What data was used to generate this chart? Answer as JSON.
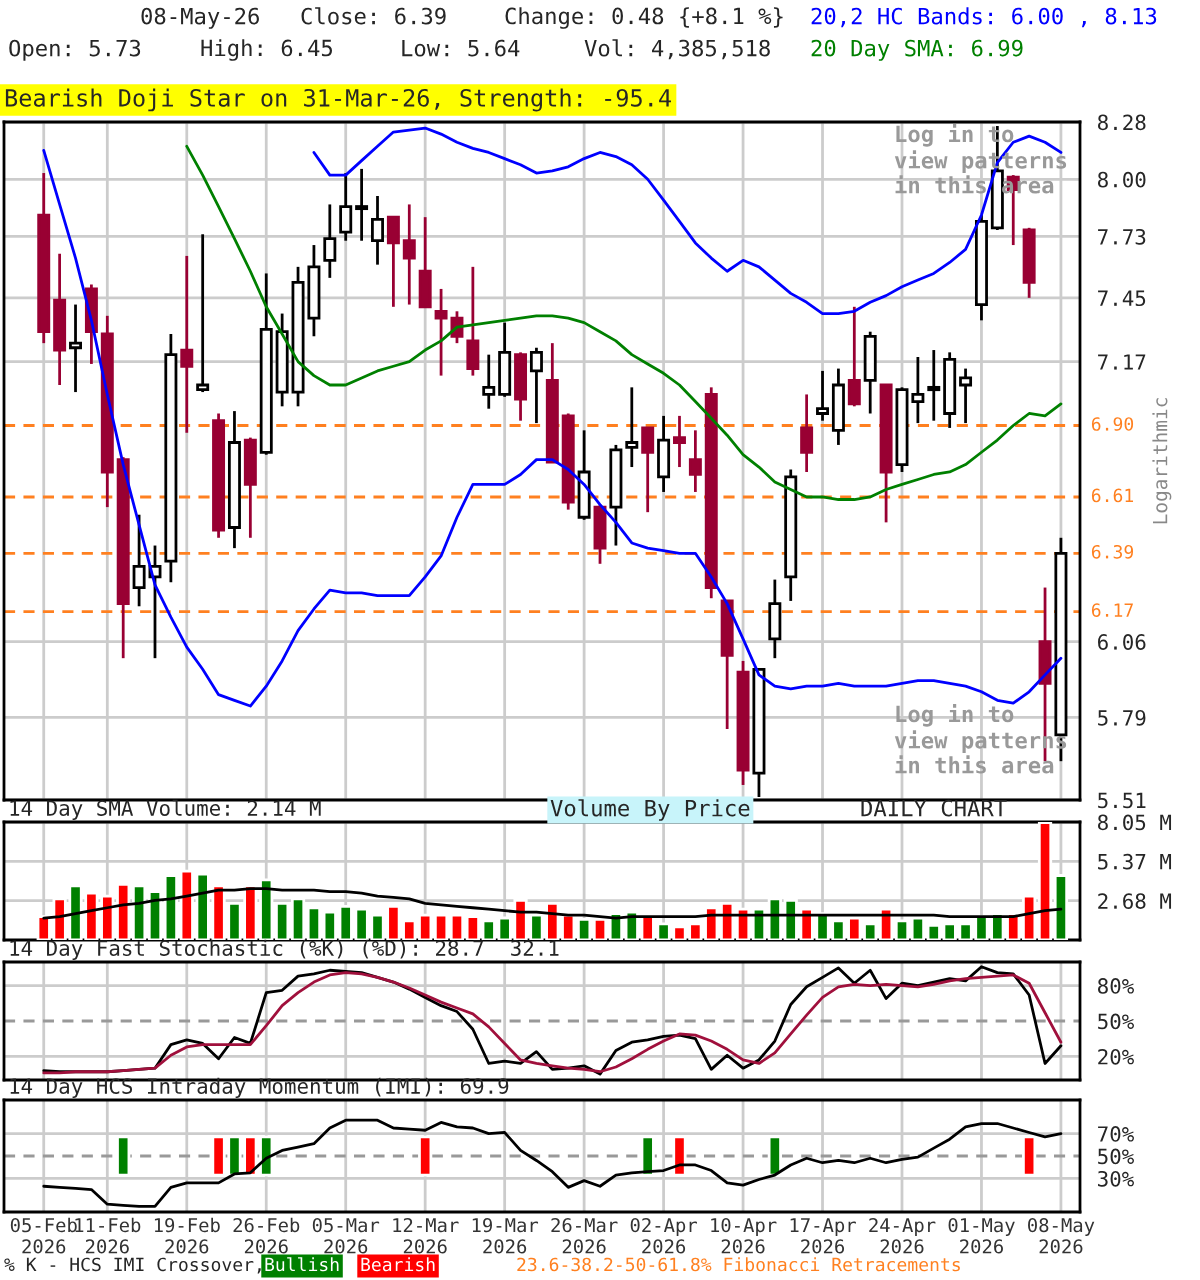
{
  "chart_data": [
    {
      "type": "candlestick",
      "title": "Bearish Doji Star on 31-Mar-26, Strength: -95.4",
      "ylabel": "Logarithmic",
      "categories": [
        null,
        null,
        null,
        null,
        null,
        null,
        null,
        null,
        null,
        null,
        null,
        null,
        null,
        null,
        null,
        null,
        null,
        null,
        null,
        null,
        null,
        null,
        null,
        null,
        null,
        null,
        null,
        null,
        null,
        null,
        null,
        null,
        null,
        null,
        null,
        null,
        null,
        null,
        null,
        null,
        null,
        null,
        null,
        null,
        null,
        null,
        null,
        null,
        null,
        null,
        null,
        null,
        null,
        null,
        null,
        null,
        null,
        null,
        null,
        null,
        null,
        null,
        null,
        null,
        null
      ],
      "ohlc": [
        [
          7.83,
          8.03,
          7.25,
          7.3
        ],
        [
          7.44,
          7.65,
          7.07,
          7.22
        ],
        [
          7.23,
          7.42,
          7.04,
          7.25
        ],
        [
          7.49,
          7.51,
          7.16,
          7.3
        ],
        [
          7.29,
          7.37,
          6.57,
          6.71
        ],
        [
          6.76,
          6.77,
          6.0,
          6.2
        ],
        [
          6.26,
          6.54,
          6.19,
          6.34
        ],
        [
          6.3,
          6.42,
          6.0,
          6.34
        ],
        [
          6.36,
          7.29,
          6.28,
          7.2
        ],
        [
          7.22,
          7.64,
          6.87,
          7.15
        ],
        [
          7.05,
          7.74,
          7.04,
          7.07
        ],
        [
          6.92,
          6.95,
          6.45,
          6.48
        ],
        [
          6.49,
          6.96,
          6.41,
          6.83
        ],
        [
          6.84,
          6.85,
          6.45,
          6.66
        ],
        [
          6.79,
          7.56,
          6.78,
          7.31
        ],
        [
          7.04,
          7.38,
          6.98,
          7.3
        ],
        [
          7.04,
          7.59,
          6.98,
          7.52
        ],
        [
          7.36,
          7.69,
          7.28,
          7.59
        ],
        [
          7.62,
          7.88,
          7.54,
          7.72
        ],
        [
          7.75,
          8.03,
          7.71,
          7.87
        ],
        [
          7.86,
          8.05,
          7.71,
          7.87
        ],
        [
          7.71,
          7.92,
          7.6,
          7.81
        ],
        [
          7.82,
          7.82,
          7.41,
          7.7
        ],
        [
          7.71,
          7.88,
          7.42,
          7.63
        ],
        [
          7.57,
          7.82,
          7.41,
          7.41
        ],
        [
          7.39,
          7.49,
          7.11,
          7.36
        ],
        [
          7.36,
          7.39,
          7.25,
          7.28
        ],
        [
          7.26,
          7.59,
          7.11,
          7.14
        ],
        [
          7.03,
          7.2,
          6.97,
          7.06
        ],
        [
          7.03,
          7.34,
          7.02,
          7.21
        ],
        [
          7.2,
          7.21,
          6.92,
          7.01
        ],
        [
          7.13,
          7.23,
          6.91,
          7.21
        ],
        [
          7.09,
          7.25,
          6.75,
          6.75
        ],
        [
          6.94,
          6.95,
          6.56,
          6.59
        ],
        [
          6.53,
          6.88,
          6.52,
          6.71
        ],
        [
          6.57,
          6.58,
          6.35,
          6.41
        ],
        [
          6.57,
          6.82,
          6.42,
          6.8
        ],
        [
          6.81,
          7.06,
          6.73,
          6.83
        ],
        [
          6.89,
          6.89,
          6.55,
          6.79
        ],
        [
          6.69,
          6.94,
          6.63,
          6.84
        ],
        [
          6.85,
          6.94,
          6.73,
          6.83
        ],
        [
          6.76,
          6.88,
          6.63,
          6.7
        ],
        [
          7.03,
          7.06,
          6.22,
          6.26
        ],
        [
          6.21,
          6.21,
          5.75,
          6.01
        ],
        [
          5.95,
          5.99,
          5.56,
          5.61
        ],
        [
          5.6,
          5.96,
          5.52,
          5.96
        ],
        [
          6.07,
          6.29,
          6.0,
          6.2
        ],
        [
          6.3,
          6.72,
          6.21,
          6.69
        ],
        [
          6.89,
          7.03,
          6.71,
          6.79
        ],
        [
          6.95,
          7.13,
          6.92,
          6.97
        ],
        [
          6.88,
          7.14,
          6.82,
          7.07
        ],
        [
          7.09,
          7.41,
          6.98,
          6.99
        ],
        [
          7.09,
          7.3,
          6.95,
          7.28
        ],
        [
          7.07,
          7.07,
          6.51,
          6.71
        ],
        [
          6.74,
          7.06,
          6.71,
          7.05
        ],
        [
          7.0,
          7.19,
          6.91,
          7.03
        ],
        [
          7.05,
          7.22,
          6.92,
          7.06
        ],
        [
          6.95,
          7.21,
          6.89,
          7.18
        ],
        [
          7.07,
          7.14,
          6.91,
          7.1
        ],
        [
          7.42,
          7.83,
          7.35,
          7.8
        ],
        [
          7.77,
          8.26,
          7.76,
          8.04
        ],
        [
          8.01,
          8.02,
          7.69,
          7.95
        ],
        [
          7.76,
          7.77,
          7.45,
          7.52
        ],
        [
          6.06,
          6.26,
          5.64,
          5.91
        ],
        [
          5.73,
          6.45,
          5.64,
          6.39
        ]
      ],
      "colors": [
        "#990033",
        "#990033",
        "#ffffff",
        "#990033",
        "#990033",
        "#990033",
        "#ffffff",
        "#ffffff",
        "#ffffff",
        "#990033",
        "#ffffff",
        "#990033",
        "#ffffff",
        "#990033",
        "#ffffff",
        "#ffffff",
        "#ffffff",
        "#ffffff",
        "#ffffff",
        "#ffffff",
        "#ffffff",
        "#ffffff",
        "#990033",
        "#990033",
        "#990033",
        "#990033",
        "#990033",
        "#990033",
        "#ffffff",
        "#ffffff",
        "#990033",
        "#ffffff",
        "#990033",
        "#990033",
        "#ffffff",
        "#990033",
        "#ffffff",
        "#ffffff",
        "#990033",
        "#ffffff",
        "#990033",
        "#990033",
        "#990033",
        "#990033",
        "#990033",
        "#ffffff",
        "#ffffff",
        "#ffffff",
        "#990033",
        "#ffffff",
        "#ffffff",
        "#990033",
        "#ffffff",
        "#990033",
        "#ffffff",
        "#ffffff",
        "#ffffff",
        "#ffffff",
        "#ffffff",
        "#ffffff",
        "#ffffff",
        "#990033",
        "#990033",
        "#990033",
        "#ffffff"
      ],
      "series": [
        {
          "name": "20,2 HC Bands: 6.00 , 8.13",
          "type": "line",
          "color": "#0000ff",
          "values": [
            null,
            null,
            null,
            null,
            null,
            null,
            null,
            null,
            null,
            null,
            null,
            null,
            null,
            null,
            null,
            null,
            null,
            8.13,
            8.02,
            8.02,
            8.09,
            8.16,
            8.23,
            8.24,
            8.25,
            8.22,
            8.18,
            8.15,
            8.13,
            8.1,
            8.07,
            8.03,
            8.04,
            8.06,
            8.1,
            8.13,
            8.11,
            8.07,
            8.0,
            7.9,
            7.8,
            7.7,
            7.63,
            7.57,
            7.62,
            7.59,
            7.53,
            7.47,
            7.43,
            7.38,
            7.38,
            7.39,
            7.43,
            7.46,
            7.5,
            7.53,
            7.56,
            7.61,
            7.67,
            7.83,
            8.08,
            8.18,
            8.21,
            8.18,
            8.13
          ]
        },
        {
          "type": "line",
          "color": "#0000ff",
          "values": [
            8.14,
            7.88,
            7.63,
            7.35,
            7.03,
            6.74,
            6.5,
            6.27,
            6.15,
            6.04,
            5.96,
            5.87,
            5.85,
            5.83,
            5.9,
            5.99,
            6.1,
            6.18,
            6.25,
            6.24,
            6.24,
            6.23,
            6.23,
            6.23,
            6.3,
            6.38,
            6.53,
            6.66,
            6.66,
            6.66,
            6.7,
            6.76,
            6.76,
            6.72,
            6.66,
            6.58,
            6.51,
            6.43,
            6.41,
            6.4,
            6.39,
            6.39,
            6.3,
            6.2,
            6.07,
            5.94,
            5.9,
            5.89,
            5.9,
            5.9,
            5.91,
            5.9,
            5.9,
            5.9,
            5.91,
            5.92,
            5.92,
            5.91,
            5.9,
            5.88,
            5.85,
            5.84,
            5.88,
            5.94,
            6.0
          ]
        },
        {
          "name": "20 Day SMA: 6.99",
          "type": "line",
          "color": "#008000",
          "values": [
            null,
            null,
            null,
            null,
            null,
            null,
            null,
            null,
            null,
            8.16,
            8.02,
            7.87,
            7.72,
            7.57,
            7.41,
            7.29,
            7.17,
            7.11,
            7.07,
            7.07,
            7.1,
            7.13,
            7.15,
            7.17,
            7.22,
            7.26,
            7.32,
            7.33,
            7.34,
            7.35,
            7.36,
            7.37,
            7.37,
            7.36,
            7.34,
            7.3,
            7.26,
            7.2,
            7.16,
            7.12,
            7.07,
            7.0,
            6.93,
            6.86,
            6.78,
            6.73,
            6.67,
            6.64,
            6.61,
            6.61,
            6.6,
            6.6,
            6.61,
            6.64,
            6.66,
            6.68,
            6.7,
            6.71,
            6.74,
            6.79,
            6.84,
            6.9,
            6.95,
            6.94,
            6.99
          ]
        }
      ],
      "log": true,
      "ylim": [
        5.51,
        8.28
      ],
      "yticks": [
        8.28,
        {
          "value": 8,
          "label": "8.00"
        },
        7.73,
        7.45,
        7.17,
        6.06,
        5.79,
        5.51
      ],
      "grid": true,
      "tick_labels": "y",
      "legend": "top right",
      "ref_lines": [
        {
          "axis": "y",
          "value": 6.9,
          "label": "6.90",
          "color": "#ff8020",
          "line_style": "dashed"
        },
        {
          "axis": "y",
          "value": 6.61,
          "label": "6.61",
          "color": "#ff8020",
          "line_style": "dashed"
        },
        {
          "axis": "y",
          "value": 6.39,
          "label": "6.39",
          "color": "#ff8020",
          "line_style": "dashed"
        },
        {
          "axis": "y",
          "value": 6.17,
          "label": "6.17",
          "color": "#ff8020",
          "line_style": "dashed"
        }
      ],
      "annotations": [
        "08-May-26",
        "Close: 6.39",
        "Change: 0.48 {+8.1 %}",
        "Open: 5.73",
        "High: 6.45",
        "Low: 5.64",
        "Vol: 4,385,518",
        "Log in to\nview patterns\nin this area",
        "Log in to\nview patterns\nin this area",
        "Volume By Price",
        "DAILY CHART"
      ]
    },
    {
      "type": "bar",
      "title": "14 Day SMA Volume: 2.14 M",
      "categories": [
        null,
        null,
        null,
        null,
        null,
        null,
        null,
        null,
        null,
        null,
        null,
        null,
        null,
        null,
        null,
        null,
        null,
        null,
        null,
        null,
        null,
        null,
        null,
        null,
        null,
        null,
        null,
        null,
        null,
        null,
        null,
        null,
        null,
        null,
        null,
        null,
        null,
        null,
        null,
        null,
        null,
        null,
        null,
        null,
        null,
        null,
        null,
        null,
        null,
        null,
        null,
        null,
        null,
        null,
        null,
        null,
        null,
        null,
        null,
        null,
        null,
        null,
        null,
        null,
        null
      ],
      "series": [
        {
          "type": "bar",
          "colors": [
            "#ff0000",
            "#ff0000",
            "#008000",
            "#ff0000",
            "#ff0000",
            "#ff0000",
            "#008000",
            "#008000",
            "#008000",
            "#ff0000",
            "#008000",
            "#ff0000",
            "#008000",
            "#ff0000",
            "#008000",
            "#008000",
            "#008000",
            "#008000",
            "#008000",
            "#008000",
            "#008000",
            "#008000",
            "#ff0000",
            "#ff0000",
            "#ff0000",
            "#ff0000",
            "#ff0000",
            "#ff0000",
            "#008000",
            "#008000",
            "#ff0000",
            "#008000",
            "#ff0000",
            "#ff0000",
            "#008000",
            "#ff0000",
            "#008000",
            "#008000",
            "#ff0000",
            "#008000",
            "#ff0000",
            "#ff0000",
            "#ff0000",
            "#ff0000",
            "#ff0000",
            "#008000",
            "#008000",
            "#008000",
            "#ff0000",
            "#008000",
            "#008000",
            "#ff0000",
            "#008000",
            "#ff0000",
            "#008000",
            "#008000",
            "#008000",
            "#008000",
            "#008000",
            "#008000",
            "#008000",
            "#ff0000",
            "#ff0000",
            "#ff0000",
            "#008000"
          ],
          "values": [
            1.6,
            2.8,
            3.7,
            3.2,
            3.0,
            3.8,
            3.7,
            3.3,
            4.4,
            4.7,
            4.5,
            3.7,
            2.5,
            3.7,
            4.1,
            2.5,
            2.8,
            2.2,
            1.9,
            2.3,
            2.1,
            1.7,
            2.3,
            1.3,
            1.7,
            1.7,
            1.7,
            1.6,
            1.3,
            1.5,
            2.7,
            1.7,
            2.5,
            1.7,
            1.4,
            1.4,
            1.8,
            1.9,
            1.7,
            1.1,
            0.9,
            1.1,
            2.2,
            2.5,
            2.1,
            2.1,
            2.8,
            2.7,
            2.1,
            1.8,
            1.3,
            1.5,
            1.1,
            2.1,
            1.3,
            1.5,
            1.0,
            1.1,
            1.1,
            1.6,
            1.8,
            1.8,
            3.0,
            8.0,
            4.4
          ]
        },
        {
          "type": "line",
          "color": "#000000",
          "values": [
            1.5,
            1.6,
            1.8,
            2.0,
            2.2,
            2.4,
            2.5,
            2.7,
            2.8,
            3.0,
            3.2,
            3.4,
            3.4,
            3.5,
            3.5,
            3.4,
            3.4,
            3.4,
            3.3,
            3.3,
            3.2,
            3.0,
            2.9,
            2.8,
            2.5,
            2.4,
            2.3,
            2.2,
            2.1,
            2.0,
            1.9,
            1.9,
            1.8,
            1.7,
            1.7,
            1.6,
            1.5,
            1.6,
            1.6,
            1.6,
            1.6,
            1.6,
            1.7,
            1.7,
            1.7,
            1.7,
            1.7,
            1.7,
            1.7,
            1.7,
            1.7,
            1.7,
            1.7,
            1.7,
            1.7,
            1.7,
            1.7,
            1.6,
            1.6,
            1.6,
            1.6,
            1.6,
            1.8,
            2.0,
            2.1
          ]
        }
      ],
      "ylim": [
        0,
        8.05
      ],
      "yticks": [
        {
          "value": 2.68,
          "label": "2.68 M"
        },
        {
          "value": 5.37,
          "label": "5.37 M"
        },
        {
          "value": 8.05,
          "label": "8.05 M"
        }
      ],
      "grid": true,
      "tick_labels": "y"
    },
    {
      "type": "line",
      "title": "14 Day Fast Stochastic (%K) (%D): 28.7  32.1",
      "categories": [
        null,
        null,
        null,
        null,
        null,
        null,
        null,
        null,
        null,
        null,
        null,
        null,
        null,
        null,
        null,
        null,
        null,
        null,
        null,
        null,
        null,
        null,
        null,
        null,
        null,
        null,
        null,
        null,
        null,
        null,
        null,
        null,
        null,
        null,
        null,
        null,
        null,
        null,
        null,
        null,
        null,
        null,
        null,
        null,
        null,
        null,
        null,
        null,
        null,
        null,
        null,
        null,
        null,
        null,
        null,
        null,
        null,
        null,
        null,
        null,
        null,
        null,
        null,
        null,
        null
      ],
      "series": [
        {
          "type": "line",
          "color": "#000000",
          "values": [
            8,
            7,
            7,
            7,
            7,
            8,
            9,
            10,
            30,
            34,
            31,
            18,
            36,
            31,
            74,
            76,
            88,
            90,
            93,
            92,
            91,
            87,
            83,
            77,
            70,
            63,
            58,
            43,
            14,
            16,
            14,
            24,
            9,
            10,
            12,
            5,
            25,
            32,
            34,
            37,
            38,
            35,
            9,
            21,
            10,
            17,
            33,
            64,
            79,
            87,
            95,
            82,
            93,
            69,
            82,
            80,
            83,
            86,
            84,
            96,
            91,
            90,
            72,
            14,
            29
          ]
        },
        {
          "type": "line",
          "color": "#a0103c",
          "values": [
            6,
            6,
            7,
            7,
            7,
            8,
            9,
            10,
            21,
            28,
            30,
            30,
            30,
            30,
            46,
            63,
            74,
            83,
            89,
            91,
            90,
            87,
            83,
            78,
            72,
            66,
            61,
            56,
            45,
            31,
            17,
            14,
            12,
            10,
            9,
            7,
            11,
            18,
            26,
            33,
            39,
            38,
            33,
            26,
            17,
            14,
            23,
            39,
            55,
            70,
            79,
            81,
            80,
            81,
            80,
            79,
            81,
            84,
            86,
            87,
            88,
            89,
            82,
            57,
            32
          ]
        }
      ],
      "ylim": [
        0,
        100
      ],
      "yticks": [
        {
          "value": 20,
          "label": "20%"
        },
        {
          "value": 50,
          "label": "50%"
        },
        {
          "value": 80,
          "label": "80%"
        }
      ],
      "ref_lines": [
        {
          "axis": "y",
          "value": 50,
          "color": "#999999",
          "line_style": "dashed"
        }
      ],
      "grid": true,
      "tick_labels": "y"
    },
    {
      "type": "line",
      "title": "14 Day HCS Intraday Momentum (IMI): 69.9",
      "legend_title": "% K - HCS IMI Crossover,",
      "legend": "bottom",
      "categories": [
        "05-Feb\n2026",
        null,
        null,
        null,
        "11-Feb\n2026",
        null,
        null,
        null,
        null,
        "19-Feb\n2026",
        null,
        null,
        null,
        null,
        "26-Feb\n2026",
        null,
        null,
        null,
        null,
        "05-Mar\n2026",
        null,
        null,
        null,
        null,
        "12-Mar\n2026",
        null,
        null,
        null,
        null,
        "19-Mar\n2026",
        null,
        null,
        null,
        null,
        "26-Mar\n2026",
        null,
        null,
        null,
        null,
        "02-Apr\n2026",
        null,
        null,
        null,
        null,
        "10-Apr\n2026",
        null,
        null,
        null,
        null,
        "17-Apr\n2026",
        null,
        null,
        null,
        null,
        "24-Apr\n2026",
        null,
        null,
        null,
        null,
        "01-May\n2026",
        null,
        null,
        null,
        null,
        "08-May\n2026"
      ],
      "series": [
        {
          "type": "line",
          "color": "#000000",
          "values": [
            23,
            22,
            21,
            20,
            7,
            6,
            5,
            5,
            22,
            26,
            26,
            26,
            34,
            35,
            48,
            55,
            58,
            61,
            75,
            82,
            82,
            82,
            75,
            74,
            73,
            80,
            76,
            75,
            70,
            71,
            55,
            46,
            36,
            22,
            28,
            23,
            33,
            35,
            36,
            37,
            42,
            42,
            37,
            26,
            24,
            29,
            33,
            42,
            48,
            44,
            46,
            44,
            48,
            44,
            47,
            49,
            57,
            65,
            76,
            79,
            79,
            75,
            71,
            67,
            70
          ]
        },
        {
          "name": "Bullish",
          "type": "bar",
          "color": "#008000",
          "values": [
            null,
            null,
            null,
            null,
            null,
            34,
            null,
            null,
            null,
            null,
            null,
            null,
            34,
            null,
            34,
            null,
            null,
            null,
            null,
            null,
            null,
            null,
            null,
            null,
            null,
            null,
            null,
            null,
            null,
            null,
            null,
            null,
            null,
            null,
            null,
            null,
            null,
            null,
            34,
            null,
            null,
            null,
            null,
            null,
            null,
            null,
            34,
            null,
            null,
            null,
            null,
            null,
            null,
            null,
            null,
            null,
            null,
            null,
            null,
            null,
            null,
            null,
            null,
            null,
            null
          ],
          "base": [
            null,
            null,
            null,
            null,
            null,
            33,
            null,
            null,
            null,
            null,
            null,
            null,
            33,
            null,
            33,
            null,
            null,
            null,
            null,
            null,
            null,
            null,
            null,
            null,
            null,
            null,
            null,
            null,
            null,
            null,
            null,
            null,
            null,
            null,
            null,
            null,
            null,
            null,
            33,
            null,
            null,
            null,
            null,
            null,
            null,
            null,
            33,
            null,
            null,
            null,
            null,
            null,
            null,
            null,
            null,
            null,
            null,
            null,
            null,
            null,
            null,
            null,
            null,
            null,
            null
          ]
        },
        {
          "name": "Bearish",
          "type": "bar",
          "color": "#ff0000",
          "values": [
            null,
            null,
            null,
            null,
            null,
            null,
            null,
            null,
            null,
            null,
            null,
            34,
            null,
            34,
            null,
            null,
            null,
            null,
            null,
            null,
            null,
            null,
            null,
            null,
            34,
            null,
            null,
            null,
            null,
            null,
            null,
            null,
            null,
            null,
            null,
            null,
            null,
            null,
            null,
            null,
            34,
            null,
            null,
            null,
            null,
            null,
            null,
            null,
            null,
            null,
            null,
            null,
            null,
            null,
            null,
            null,
            null,
            null,
            null,
            null,
            null,
            null,
            34,
            null,
            null
          ],
          "base": [
            null,
            null,
            null,
            null,
            null,
            null,
            null,
            null,
            null,
            null,
            null,
            33,
            null,
            33,
            null,
            null,
            null,
            null,
            null,
            null,
            null,
            null,
            null,
            null,
            33,
            null,
            null,
            null,
            null,
            null,
            null,
            null,
            null,
            null,
            null,
            null,
            null,
            null,
            null,
            null,
            33,
            null,
            null,
            null,
            null,
            null,
            null,
            null,
            null,
            null,
            null,
            null,
            null,
            null,
            null,
            null,
            null,
            null,
            null,
            null,
            null,
            null,
            33,
            null,
            null
          ]
        }
      ],
      "ylim": [
        0,
        100
      ],
      "yticks": [
        {
          "value": 30,
          "label": "30%"
        },
        {
          "value": 50,
          "label": "50%"
        },
        {
          "value": 70,
          "label": "70%"
        }
      ],
      "ref_lines": [
        {
          "axis": "y",
          "value": 50,
          "color": "#999999",
          "line_style": "dashed"
        }
      ],
      "grid": true,
      "annotations": [
        "23.6-38.2-50-61.8% Fibonacci Retracements"
      ]
    }
  ]
}
